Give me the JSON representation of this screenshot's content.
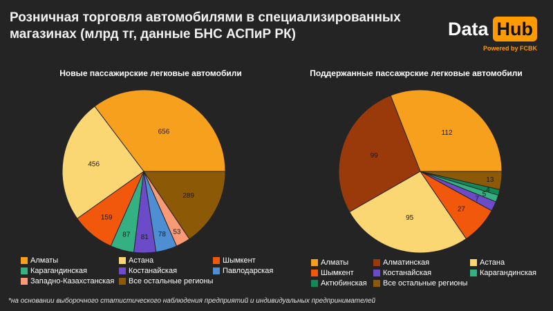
{
  "header": {
    "title": "Розничная торговля автомобилями в специализированных магазинах (млрд тг, данные БНС АСПиР РК)"
  },
  "logo": {
    "word1": "Data",
    "word2": "Hub",
    "powered": "Powered by FCBK"
  },
  "footnote": "*на основании выборочного статистического наблюдения предприятий и  индивидуальных предпринимателей",
  "chart_data": [
    {
      "type": "pie",
      "title": "Новые пассажирские легковые автомобили",
      "slices": [
        {
          "label": "Алматы",
          "value": 656,
          "color": "#f7a01e"
        },
        {
          "label": "Астана",
          "value": 456,
          "color": "#fbd774"
        },
        {
          "label": "Шымкент",
          "value": 159,
          "color": "#f1580b"
        },
        {
          "label": "Карагандинская",
          "value": 87,
          "color": "#34b083"
        },
        {
          "label": "Костанайская",
          "value": 81,
          "color": "#6b4bc8"
        },
        {
          "label": "Павлодарская",
          "value": 78,
          "color": "#4e8fd3"
        },
        {
          "label": "Западно-Казахстанская",
          "value": 53,
          "color": "#f79a75"
        },
        {
          "label": "Все остальные регионы",
          "value": 289,
          "color": "#8c5a06"
        }
      ],
      "legend_position": "bottom"
    },
    {
      "type": "pie",
      "title": "Поддержанные пассажрские легковые автомобили",
      "slices": [
        {
          "label": "Алматы",
          "value": 112,
          "color": "#f7a01e"
        },
        {
          "label": "Алматинская",
          "value": 99,
          "color": "#9a3a0a"
        },
        {
          "label": "Астана",
          "value": 95,
          "color": "#fbd774"
        },
        {
          "label": "Шымкент",
          "value": 27,
          "color": "#f1580b"
        },
        {
          "label": "Костанайская",
          "value": 7,
          "color": "#6b4bc8"
        },
        {
          "label": "Карагандинская",
          "value": 5,
          "color": "#34b083"
        },
        {
          "label": "Актюбинская",
          "value": 4,
          "color": "#118a5a"
        },
        {
          "label": "Все остальные регионы",
          "value": 13,
          "color": "#8c5a06"
        }
      ],
      "legend_position": "bottom"
    }
  ]
}
